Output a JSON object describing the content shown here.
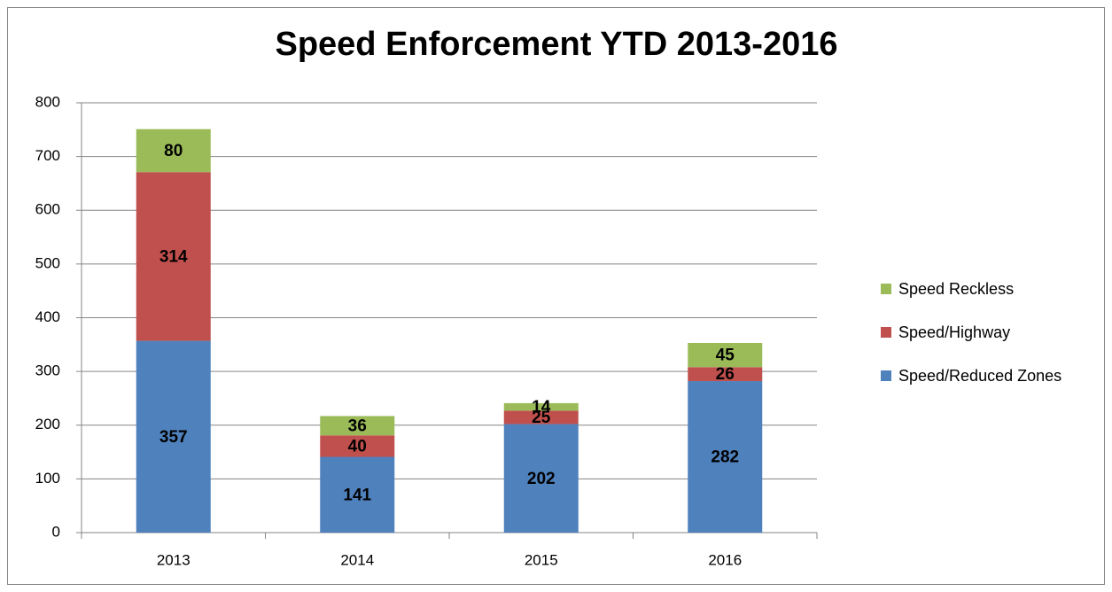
{
  "chart_data": {
    "type": "stacked_bar",
    "title": "Speed Enforcement YTD 2013-2016",
    "categories": [
      "2013",
      "2014",
      "2015",
      "2016"
    ],
    "series": [
      {
        "name": "Speed/Reduced Zones",
        "color": "#4f81bd",
        "values": [
          357,
          141,
          202,
          282
        ]
      },
      {
        "name": "Speed/Highway",
        "color": "#c0504d",
        "values": [
          314,
          40,
          25,
          26
        ]
      },
      {
        "name": "Speed Reckless",
        "color": "#9bbb59",
        "values": [
          80,
          36,
          14,
          45
        ]
      }
    ],
    "ylim": [
      0,
      800
    ],
    "yticks": [
      0,
      100,
      200,
      300,
      400,
      500,
      600,
      700,
      800
    ],
    "grid": true,
    "legend": "right"
  }
}
